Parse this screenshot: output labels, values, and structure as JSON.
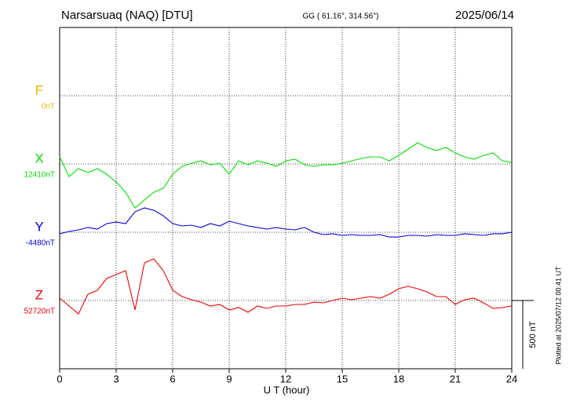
{
  "chart_data": {
    "type": "line",
    "title": "Narsarsuaq (NAQ)  [DTU]",
    "subtitle": "GG ( 61.16°, 314.56°)",
    "date": "2025/06/14",
    "footnote": "Plotted at 2025/07/12 00:41 UT",
    "xlabel": "U T (hour)",
    "xlim": [
      0,
      24
    ],
    "xticks": [
      0,
      3,
      6,
      9,
      12,
      15,
      18,
      21,
      24
    ],
    "scale_bar": {
      "value": 500,
      "label": "500 nT"
    },
    "grid": true,
    "x": [
      0,
      0.5,
      1,
      1.5,
      2,
      2.5,
      3,
      3.5,
      4,
      4.5,
      5,
      5.5,
      6,
      6.5,
      7,
      7.5,
      8,
      8.5,
      9,
      9.5,
      10,
      10.5,
      11,
      11.5,
      12,
      12.5,
      13,
      13.5,
      14,
      14.5,
      15,
      15.5,
      16,
      16.5,
      17,
      17.5,
      18,
      18.5,
      19,
      19.5,
      20,
      20.5,
      21,
      21.5,
      22,
      22.5,
      23,
      23.5,
      24
    ],
    "series": [
      {
        "name": "F",
        "color": "#f0b000",
        "baseline": {
          "value": 0,
          "label": "0nT"
        },
        "values": [
          null,
          null,
          null,
          null,
          null,
          null,
          null,
          null,
          null,
          null,
          null,
          null,
          null,
          null,
          null,
          null,
          null,
          null,
          null,
          null,
          null,
          null,
          null,
          null,
          null,
          null,
          null,
          null,
          null,
          null,
          null,
          null,
          null,
          null,
          null,
          null,
          null,
          null,
          null,
          null,
          null,
          null,
          null,
          null,
          null,
          null,
          null,
          null,
          null
        ]
      },
      {
        "name": "X",
        "color": "#00e000",
        "baseline": {
          "value": 12410,
          "label": "12410nT"
        },
        "values": [
          12462,
          12318,
          12376,
          12347,
          12376,
          12335,
          12278,
          12203,
          12088,
          12146,
          12203,
          12232,
          12335,
          12393,
          12416,
          12433,
          12404,
          12416,
          12335,
          12433,
          12404,
          12433,
          12416,
          12393,
          12433,
          12445,
          12404,
          12393,
          12404,
          12404,
          12416,
          12433,
          12450,
          12462,
          12462,
          12433,
          12473,
          12519,
          12565,
          12531,
          12508,
          12531,
          12491,
          12462,
          12445,
          12473,
          12491,
          12433,
          12422
        ]
      },
      {
        "name": "Y",
        "color": "#0000dd",
        "baseline": {
          "value": -4480,
          "label": "-4480nT"
        },
        "values": [
          -4491,
          -4474,
          -4463,
          -4445,
          -4457,
          -4417,
          -4405,
          -4417,
          -4330,
          -4302,
          -4319,
          -4359,
          -4417,
          -4434,
          -4428,
          -4445,
          -4417,
          -4434,
          -4399,
          -4417,
          -4434,
          -4445,
          -4457,
          -4445,
          -4457,
          -4463,
          -4445,
          -4480,
          -4497,
          -4491,
          -4503,
          -4497,
          -4503,
          -4503,
          -4497,
          -4515,
          -4515,
          -4503,
          -4503,
          -4509,
          -4497,
          -4503,
          -4503,
          -4491,
          -4497,
          -4503,
          -4491,
          -4491,
          -4480
        ]
      },
      {
        "name": "Z",
        "color": "#ee0000",
        "baseline": {
          "value": 52720,
          "label": "52720nT"
        },
        "values": [
          52737,
          52680,
          52622,
          52766,
          52795,
          52881,
          52910,
          52939,
          52651,
          52996,
          53025,
          52939,
          52795,
          52749,
          52726,
          52708,
          52680,
          52691,
          52651,
          52668,
          52634,
          52680,
          52662,
          52680,
          52680,
          52691,
          52691,
          52708,
          52703,
          52720,
          52737,
          52726,
          52737,
          52749,
          52737,
          52766,
          52806,
          52824,
          52806,
          52783,
          52749,
          52749,
          52691,
          52726,
          52737,
          52703,
          52662,
          52668,
          52680
        ]
      }
    ]
  }
}
